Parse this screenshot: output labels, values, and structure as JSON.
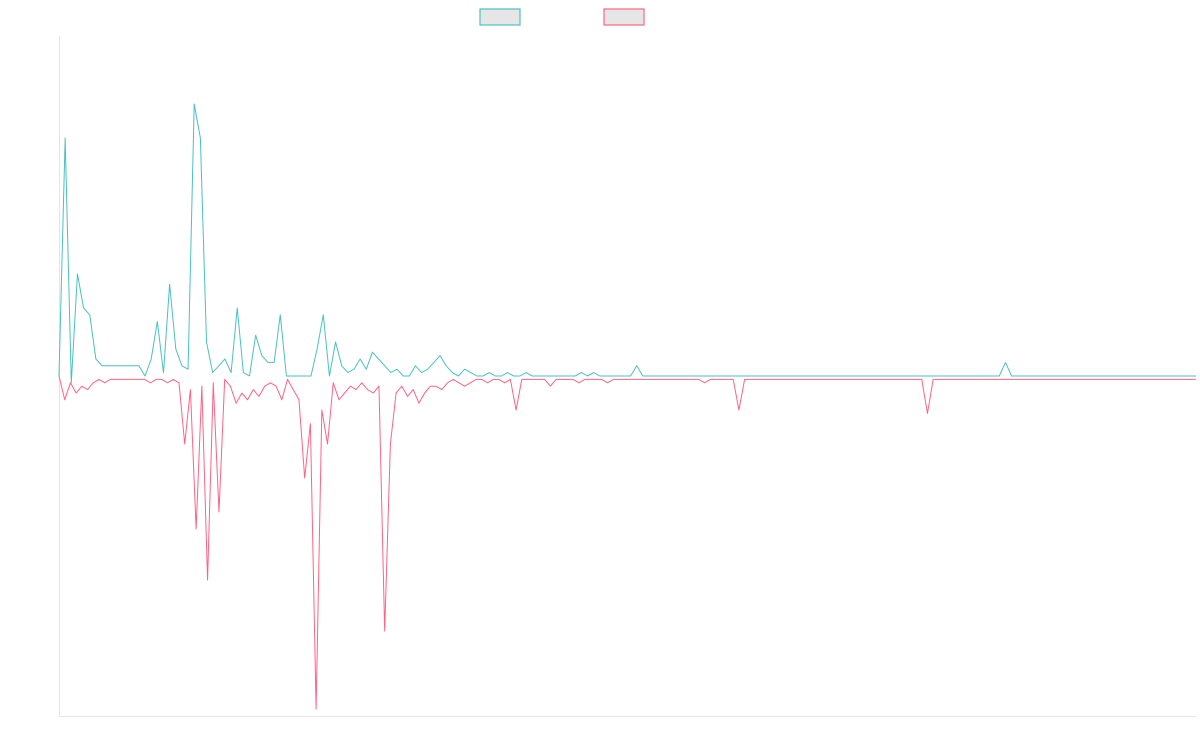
{
  "chart_data": {
    "type": "line",
    "title": "",
    "xlabel": "",
    "ylabel": "",
    "legend": {
      "placement": "top-center"
    },
    "grid": false,
    "y_range": [
      -100,
      100
    ],
    "series": [
      {
        "color": "#4bc0c0",
        "values": [
          0,
          70,
          -2,
          30,
          20,
          18,
          5,
          3,
          3,
          3,
          3,
          3,
          3,
          3,
          0,
          5,
          16,
          1,
          27,
          8,
          3,
          2,
          80,
          70,
          10,
          1,
          3,
          5,
          1,
          20,
          1,
          0,
          12,
          6,
          4,
          4,
          18,
          0,
          0,
          0,
          0,
          0,
          8,
          18,
          0,
          10,
          3,
          1,
          2,
          5,
          2,
          7,
          5,
          3,
          1,
          2,
          0,
          0,
          3,
          1,
          2,
          4,
          6,
          3,
          1,
          0,
          2,
          1,
          0,
          0,
          1,
          0,
          0,
          1,
          0,
          0,
          1,
          0,
          0,
          0,
          0,
          0,
          0,
          0,
          0,
          1,
          0,
          1,
          0,
          0,
          0,
          0,
          0,
          0,
          3,
          0,
          0,
          0,
          0,
          0,
          0,
          0,
          0,
          0,
          0,
          0,
          0,
          0,
          0,
          0,
          0,
          0,
          0,
          0,
          0,
          0,
          0,
          0,
          0,
          0,
          0,
          0,
          0,
          0,
          0,
          0,
          0,
          0,
          0,
          0,
          0,
          0,
          0,
          0,
          0,
          0,
          0,
          0,
          0,
          0,
          0,
          0,
          0,
          0,
          0,
          0,
          0,
          0,
          0,
          0,
          0,
          0,
          0,
          0,
          4,
          0,
          0,
          0,
          0,
          0,
          0,
          0,
          0,
          0,
          0,
          0,
          0,
          0,
          0,
          0,
          0,
          0,
          0,
          0,
          0,
          0,
          0,
          0,
          0,
          0,
          0,
          0,
          0,
          0,
          0,
          0
        ]
      },
      {
        "color": "#ff6384",
        "values": [
          0,
          -7,
          -2,
          -5,
          -3,
          -4,
          -2,
          -1,
          -2,
          -1,
          -1,
          -1,
          -1,
          -1,
          -1,
          -1,
          -2,
          -1,
          -1,
          -2,
          -1,
          -2,
          -20,
          -4,
          -45,
          -3,
          -60,
          -2,
          -40,
          -1,
          -3,
          -8,
          -5,
          -7,
          -4,
          -6,
          -3,
          -2,
          -3,
          -7,
          -1,
          -4,
          -7,
          -30,
          -14,
          -98,
          -10,
          -20,
          -2,
          -7,
          -5,
          -3,
          -4,
          -2,
          -4,
          -5,
          -3,
          -75,
          -20,
          -5,
          -3,
          -6,
          -4,
          -8,
          -5,
          -3,
          -3,
          -4,
          -2,
          -1,
          -2,
          -3,
          -2,
          -1,
          -1,
          -2,
          -1,
          -1,
          -2,
          -1,
          -10,
          -1,
          -1,
          -1,
          -1,
          -1,
          -3,
          -1,
          -1,
          -1,
          -1,
          -2,
          -1,
          -1,
          -1,
          -1,
          -2,
          -1,
          -1,
          -1,
          -1,
          -1,
          -1,
          -1,
          -1,
          -1,
          -1,
          -1,
          -1,
          -1,
          -1,
          -1,
          -1,
          -2,
          -1,
          -1,
          -1,
          -1,
          -1,
          -10,
          -1,
          -1,
          -1,
          -1,
          -1,
          -1,
          -1,
          -1,
          -1,
          -1,
          -1,
          -1,
          -1,
          -1,
          -1,
          -1,
          -1,
          -1,
          -1,
          -1,
          -1,
          -1,
          -1,
          -1,
          -1,
          -1,
          -1,
          -1,
          -1,
          -1,
          -1,
          -1,
          -11,
          -1,
          -1,
          -1,
          -1,
          -1,
          -1,
          -1,
          -1,
          -1,
          -1,
          -1,
          -1,
          -1,
          -1,
          -1,
          -1,
          -1,
          -1,
          -1,
          -1,
          -1,
          -1,
          -1,
          -1,
          -1,
          -1,
          -1,
          -1,
          -1,
          -1,
          -1,
          -1,
          -1,
          -1,
          -1,
          -1,
          -1,
          -1,
          -1,
          -1,
          -1,
          -1,
          -1,
          -1,
          -1,
          -1,
          -1
        ]
      }
    ]
  }
}
